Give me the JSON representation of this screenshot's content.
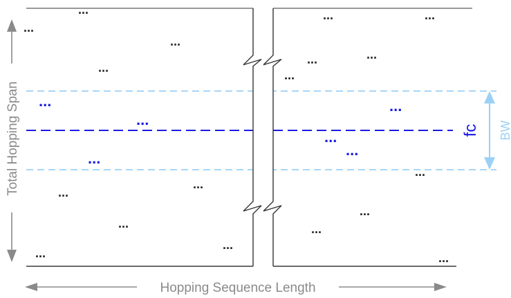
{
  "labels": {
    "x_axis": "Hopping Sequence Length",
    "y_axis": "Total Hopping Span",
    "center_frequency": "fc",
    "bandwidth": "BW",
    "hop_marker": "..."
  },
  "colors": {
    "axis_gray": "#8a8a8a",
    "frame_dark": "#555555",
    "center_line_blue": "#1a1ae6",
    "band_edge_lightblue": "#9cd1f5",
    "hop_black": "#222222",
    "hop_blue": "#1a1ae6"
  },
  "icons": {
    "x_arrow": "double-headed-horizontal-arrow-icon",
    "y_arrow": "double-headed-vertical-arrow-icon",
    "bw_arrow": "double-headed-vertical-arrow-icon",
    "break_symbol": "axis-break-icon"
  }
}
